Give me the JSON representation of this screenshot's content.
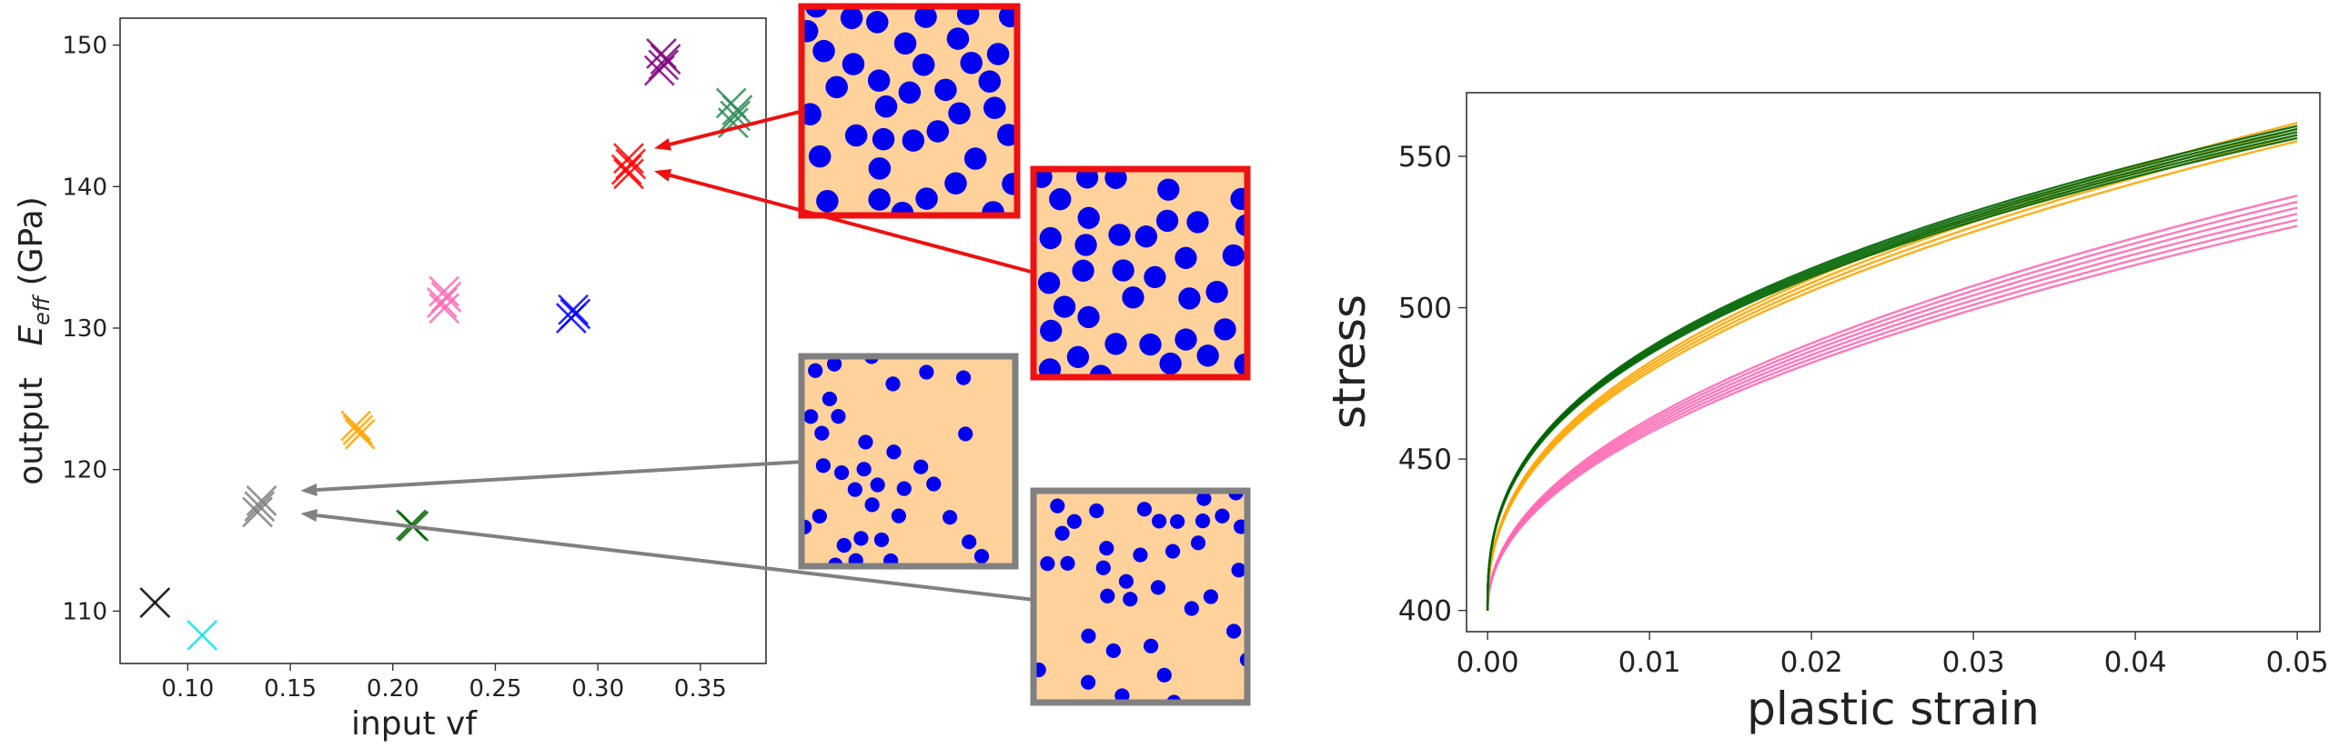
{
  "chart_data": [
    {
      "type": "scatter",
      "xlabel": "input   vf",
      "ylabel_prefix": "output   ",
      "ylabel_symbol": "E",
      "ylabel_subscript": "eff",
      "ylabel_unit": " (GPa)",
      "xlim": [
        0.067,
        0.382
      ],
      "ylim": [
        106.3,
        151.9
      ],
      "xticks": [
        "0.10",
        "0.15",
        "0.20",
        "0.25",
        "0.30",
        "0.35"
      ],
      "xtick_values": [
        0.1,
        0.15,
        0.2,
        0.25,
        0.3,
        0.35
      ],
      "yticks": [
        "110",
        "120",
        "130",
        "140",
        "150"
      ],
      "ytick_values": [
        110,
        120,
        130,
        140,
        150
      ],
      "grid": false,
      "marker": "x",
      "clusters": [
        {
          "color": "#000000",
          "points": [
            [
              0.084,
              110.6
            ]
          ],
          "spread": [
            0,
            0
          ]
        },
        {
          "color": "#00e5ee",
          "points": [
            [
              0.107,
              108.3
            ]
          ],
          "spread": [
            0,
            0
          ]
        },
        {
          "color": "#808080",
          "points": [
            [
              0.135,
              117.4
            ],
            [
              0.134,
              117.0
            ],
            [
              0.136,
              117.8
            ]
          ],
          "spread": [
            0.002,
            0.4
          ]
        },
        {
          "color": "#ffa500",
          "points": [
            [
              0.183,
              122.8
            ],
            [
              0.184,
              122.5
            ],
            [
              0.182,
              123.1
            ]
          ],
          "spread": [
            0.001,
            0.3
          ]
        },
        {
          "color": "#006400",
          "points": [
            [
              0.209,
              116.1
            ],
            [
              0.21,
              116.0
            ]
          ],
          "spread": [
            0.001,
            0.2
          ]
        },
        {
          "color": "#ff69b4",
          "points": [
            [
              0.225,
              132.6
            ],
            [
              0.224,
              131.8
            ],
            [
              0.226,
              132.2
            ],
            [
              0.225,
              131.4
            ]
          ],
          "spread": [
            0.002,
            0.8
          ]
        },
        {
          "color": "#0000ff",
          "points": [
            [
              0.288,
              131.3
            ],
            [
              0.287,
              130.7
            ],
            [
              0.289,
              131.0
            ]
          ],
          "spread": [
            0.001,
            0.6
          ]
        },
        {
          "color": "#ff0000",
          "points": [
            [
              0.315,
              142.0
            ],
            [
              0.314,
              141.2
            ],
            [
              0.316,
              141.6
            ],
            [
              0.315,
              140.9
            ]
          ],
          "spread": [
            0.002,
            1.1
          ]
        },
        {
          "color": "#2e8b57",
          "points": [
            [
              0.365,
              145.9
            ],
            [
              0.367,
              145.0
            ],
            [
              0.366,
              144.5
            ],
            [
              0.368,
              145.4
            ]
          ],
          "spread": [
            0.003,
            1.4
          ]
        },
        {
          "color": "#800080",
          "points": [
            [
              0.331,
              149.4
            ],
            [
              0.332,
              148.6
            ],
            [
              0.33,
              148.2
            ],
            [
              0.333,
              149.0
            ]
          ],
          "spread": [
            0.003,
            1.2
          ]
        }
      ]
    },
    {
      "type": "line",
      "xlabel": "plastic strain",
      "ylabel": "stress",
      "xlim": [
        -0.0013,
        0.0514
      ],
      "ylim": [
        393,
        571
      ],
      "xticks": [
        "0.00",
        "0.01",
        "0.02",
        "0.03",
        "0.04",
        "0.05"
      ],
      "xtick_values": [
        0,
        0.01,
        0.02,
        0.03,
        0.04,
        0.05
      ],
      "yticks": [
        "400",
        "450",
        "500",
        "550"
      ],
      "ytick_values": [
        400,
        450,
        500,
        550
      ],
      "grid": false,
      "model": "stress = 400 + k * strain^n",
      "series": [
        {
          "color": "#ff69b4",
          "k": 579,
          "n": 0.48,
          "finals": [
            527,
            529,
            531,
            533,
            535,
            537
          ]
        },
        {
          "color": "#ffa500",
          "k": 625,
          "n": 0.42,
          "finals": [
            555,
            557,
            559,
            561
          ]
        },
        {
          "color": "#006400",
          "k": 570,
          "n": 0.38,
          "finals": [
            556,
            557,
            558,
            559,
            560
          ]
        }
      ]
    }
  ],
  "microstructures": [
    {
      "border": "#ee1111",
      "fill": "#ffd19b",
      "dot": "#0000ee",
      "radius": 9,
      "count": 38,
      "seed": 11
    },
    {
      "border": "#ee1111",
      "fill": "#ffd19b",
      "dot": "#0000ee",
      "radius": 9,
      "count": 36,
      "seed": 23
    },
    {
      "border": "#808080",
      "fill": "#ffd19b",
      "dot": "#0000ee",
      "radius": 6,
      "count": 34,
      "seed": 37
    },
    {
      "border": "#808080",
      "fill": "#ffd19b",
      "dot": "#0000ee",
      "radius": 6,
      "count": 36,
      "seed": 51
    }
  ],
  "arrows": [
    {
      "color": "#ee1111",
      "from_inset": 0,
      "to": [
        0.315,
        142.7
      ]
    },
    {
      "color": "#ee1111",
      "from_inset": 1,
      "to": [
        0.315,
        141.1
      ]
    },
    {
      "color": "#808080",
      "from_inset": 2,
      "to": [
        0.155,
        118.5
      ]
    },
    {
      "color": "#808080",
      "from_inset": 3,
      "to": [
        0.155,
        116.9
      ]
    }
  ]
}
